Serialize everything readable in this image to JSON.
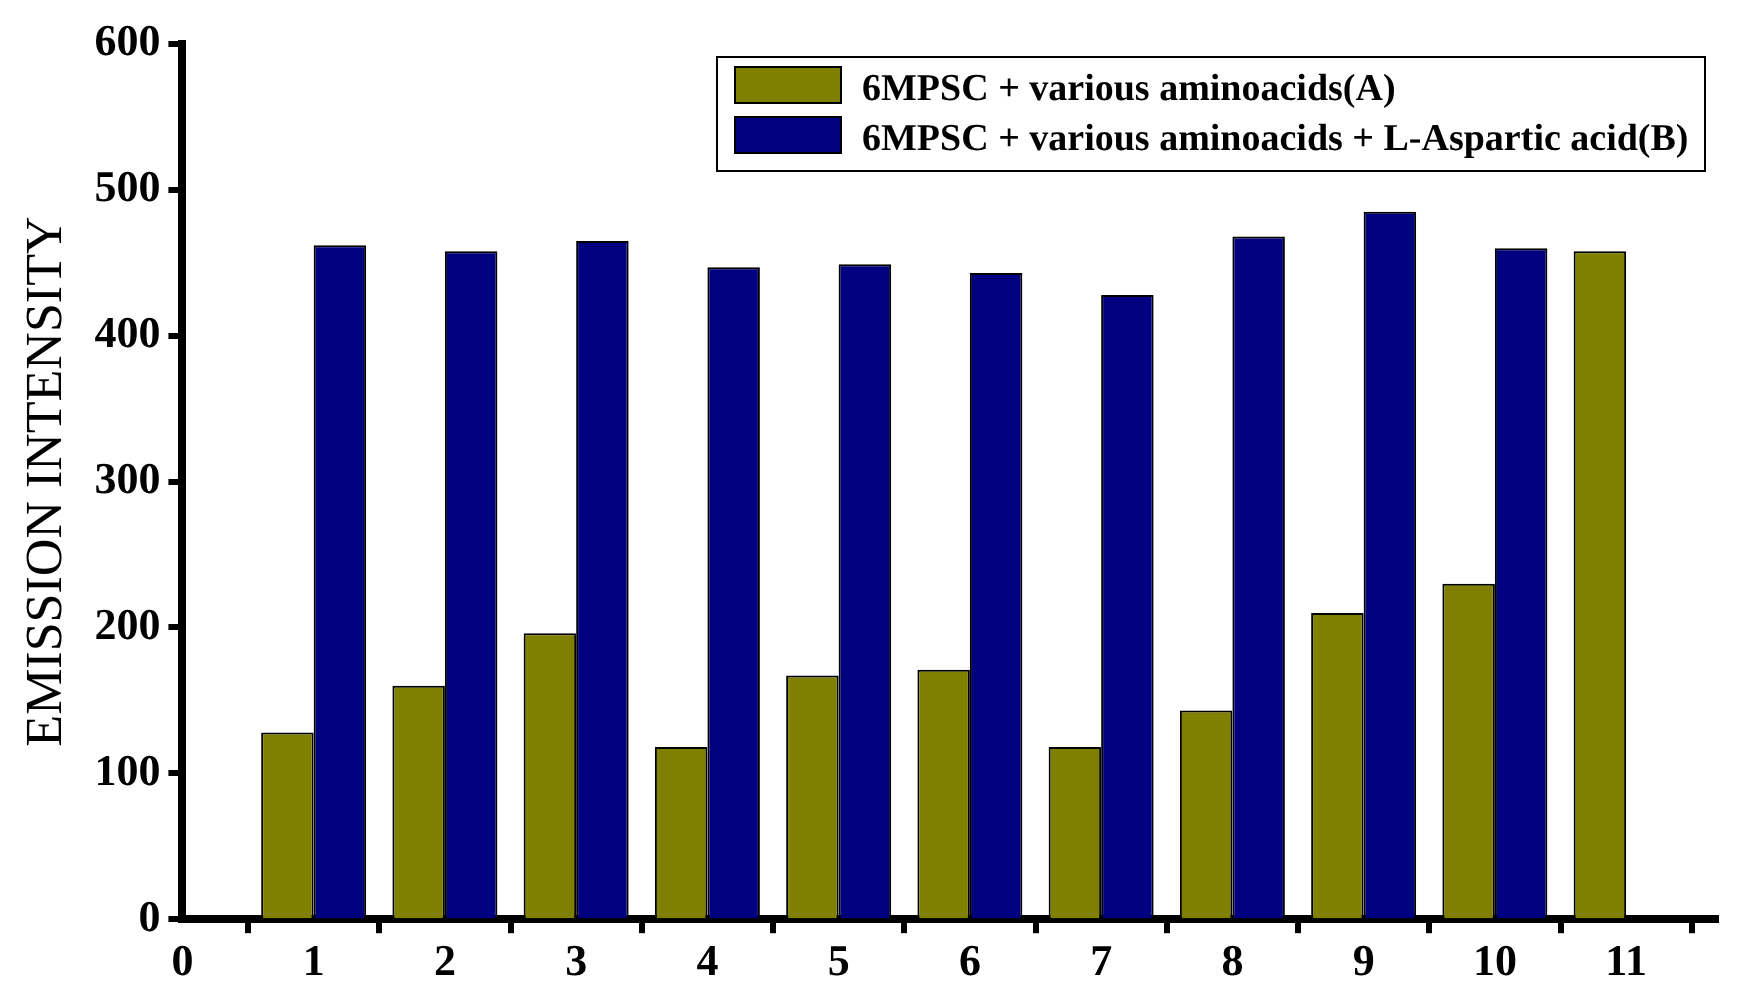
{
  "chart_data": {
    "type": "bar",
    "ylabel": "EMISSION INTENSITY",
    "x": [
      1,
      2,
      3,
      4,
      5,
      6,
      7,
      8,
      9,
      10,
      11
    ],
    "xlim": [
      0,
      11.7
    ],
    "xticks": [
      0,
      1,
      2,
      3,
      4,
      5,
      6,
      7,
      8,
      9,
      10,
      11
    ],
    "ylim": [
      0,
      600
    ],
    "yticks": [
      0,
      100,
      200,
      300,
      400,
      500,
      600
    ],
    "grid": false,
    "legend": "top right",
    "series": [
      {
        "name": "6MPSC + various aminoacids(A)",
        "color": "#808000",
        "values": [
          128,
          160,
          196,
          118,
          167,
          171,
          118,
          143,
          210,
          230,
          458
        ]
      },
      {
        "name": "6MPSC + various aminoacids + L-Aspartic acid(B)",
        "color": "#000080",
        "values": [
          462,
          458,
          465,
          447,
          449,
          443,
          428,
          468,
          485,
          460,
          null
        ]
      }
    ]
  }
}
